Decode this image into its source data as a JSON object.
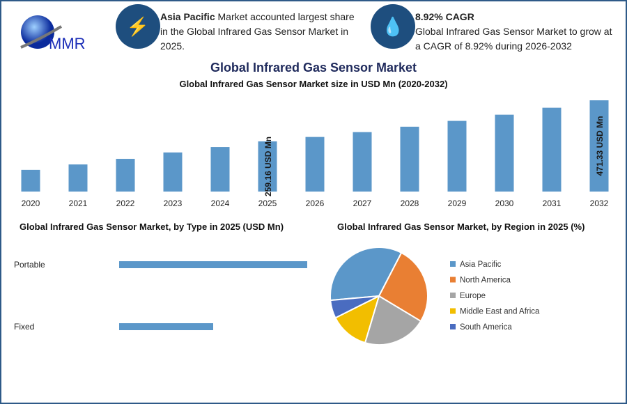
{
  "logo_text": "MMR",
  "info1": {
    "bold": "Asia Pacific",
    "text": " Market accounted largest share in the Global Infrared Gas Sensor Market in 2025."
  },
  "info2": {
    "bold": "8.92% CAGR",
    "text": "Global Infrared Gas Sensor Market to grow at a CAGR of 8.92% during 2026-2032"
  },
  "icons": {
    "info1": "lightning-icon",
    "info2": "flame-drop-icon"
  },
  "title": "Global Infrared Gas Sensor Market",
  "chart_data": [
    {
      "type": "bar",
      "title": "Global Infrared Gas Sensor Market size in USD Mn (2020-2032)",
      "categories": [
        "2020",
        "2021",
        "2022",
        "2023",
        "2024",
        "2025",
        "2026",
        "2027",
        "2028",
        "2029",
        "2030",
        "2031",
        "2032"
      ],
      "values": [
        112,
        140,
        169,
        202,
        230,
        259.16,
        282,
        307,
        335,
        365,
        397,
        433,
        471.33
      ],
      "data_labels": {
        "2025": "259.16 USD Mn",
        "2032": "471.33 USD Mn"
      },
      "color": "#5b97c9",
      "ylim": [
        0,
        471.33
      ]
    },
    {
      "type": "bar",
      "orientation": "horizontal",
      "title": "Global Infrared Gas Sensor Market, by Type in 2025 (USD Mn)",
      "categories": [
        "Portable",
        "Fixed"
      ],
      "values": [
        1.0,
        0.5
      ],
      "color": "#5b97c9"
    },
    {
      "type": "pie",
      "title": "Global Infrared Gas Sensor Market, by Region in 2025 (%)",
      "categories": [
        "Asia Pacific",
        "North America",
        "Europe",
        "Middle East and Africa",
        "South America"
      ],
      "values": [
        34,
        26,
        21,
        13,
        6
      ],
      "colors": [
        "#5b97c9",
        "#e97f33",
        "#a5a5a5",
        "#f2be00",
        "#4a6cc0"
      ],
      "legend": "right"
    }
  ]
}
